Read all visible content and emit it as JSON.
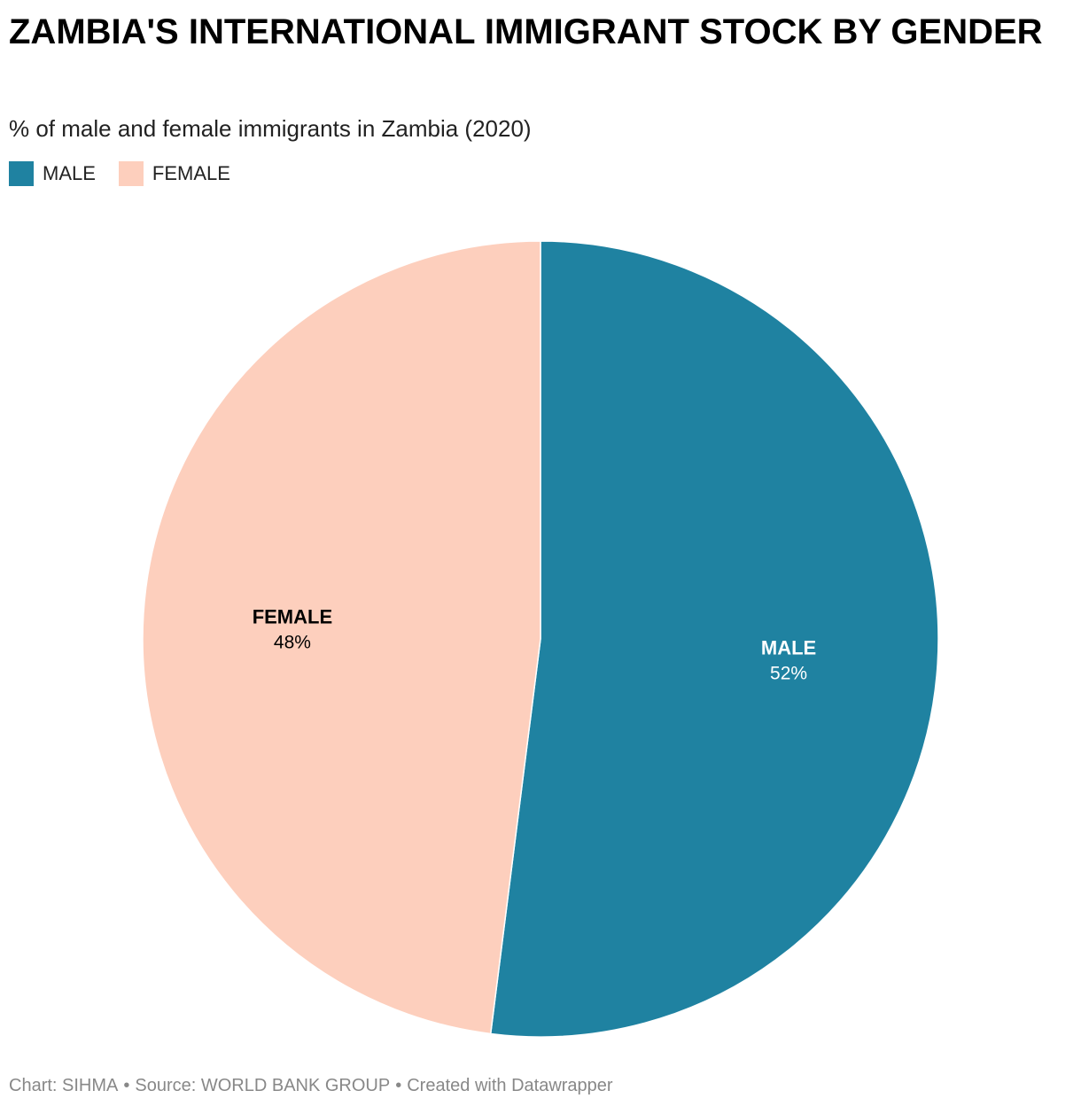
{
  "title": "ZAMBIA'S INTERNATIONAL IMMIGRANT STOCK BY GENDER",
  "subtitle": "% of male and female immigrants in Zambia (2020)",
  "legend": [
    {
      "label": "MALE",
      "color": "#1f82a1"
    },
    {
      "label": "FEMALE",
      "color": "#fdcfbd"
    }
  ],
  "chart_data": {
    "type": "pie",
    "title": "ZAMBIA'S INTERNATIONAL IMMIGRANT STOCK BY GENDER",
    "subtitle": "% of male and female immigrants in Zambia (2020)",
    "legend_position": "top-left",
    "slices": [
      {
        "label": "MALE",
        "value": 52,
        "value_label": "52%",
        "color": "#1f82a1",
        "label_color": "#ffffff"
      },
      {
        "label": "FEMALE",
        "value": 48,
        "value_label": "48%",
        "color": "#fdcfbd",
        "label_color": "#000000"
      }
    ]
  },
  "footer": {
    "chart_credit": "Chart: SIHMA",
    "source": "Source: WORLD BANK GROUP",
    "created_with": "Created with Datawrapper",
    "separator": "•"
  }
}
